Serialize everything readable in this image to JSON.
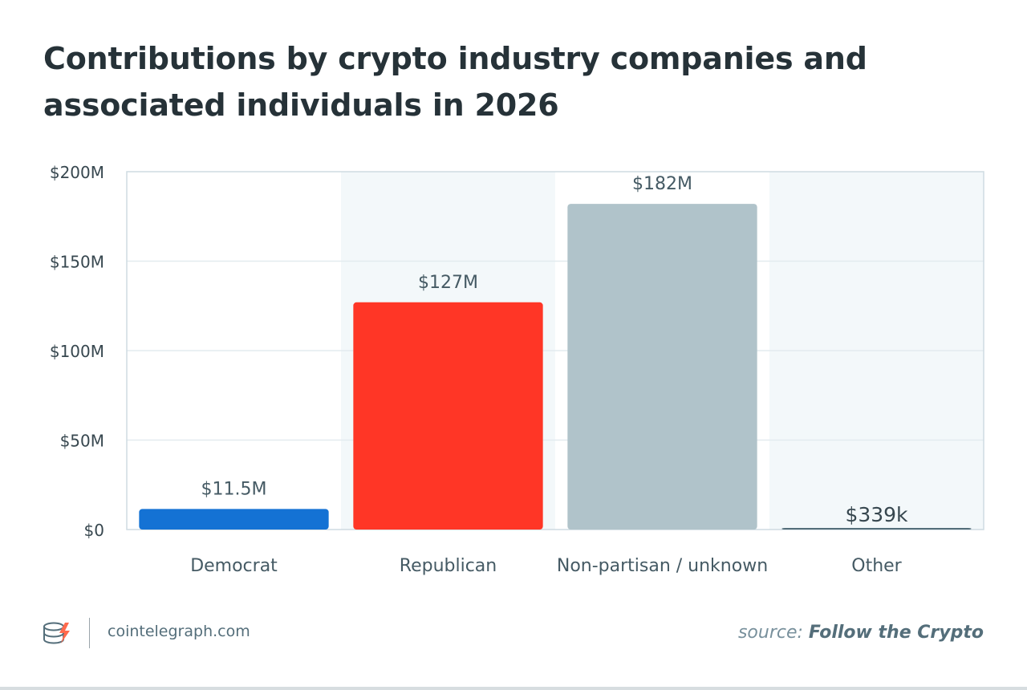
{
  "chart_data": {
    "type": "bar",
    "title": "Contributions by crypto industry companies and associated individuals in 2026",
    "categories": [
      "Democrat",
      "Republican",
      "Non-partisan / unknown",
      "Other"
    ],
    "values": [
      11.5,
      127,
      182,
      0.339
    ],
    "value_unit": "$M",
    "data_labels": [
      "$11.5M",
      "$127M",
      "$182M",
      "$339k"
    ],
    "colors": [
      "#1472d4",
      "#ff3626",
      "#b0c3ca",
      "#546e7a"
    ],
    "ylim": [
      0,
      200
    ],
    "yticks": [
      0,
      50,
      100,
      150,
      200
    ],
    "ytick_labels": [
      "$0",
      "$50M",
      "$100M",
      "$150M",
      "$200M"
    ],
    "xlabel": "",
    "ylabel": "",
    "grid": true,
    "legend": "none"
  },
  "footer": {
    "site": "cointelegraph.com",
    "logo_icon": "cointelegraph-logo-icon",
    "source_prefix": "source: ",
    "source_name": "Follow the Crypto"
  }
}
